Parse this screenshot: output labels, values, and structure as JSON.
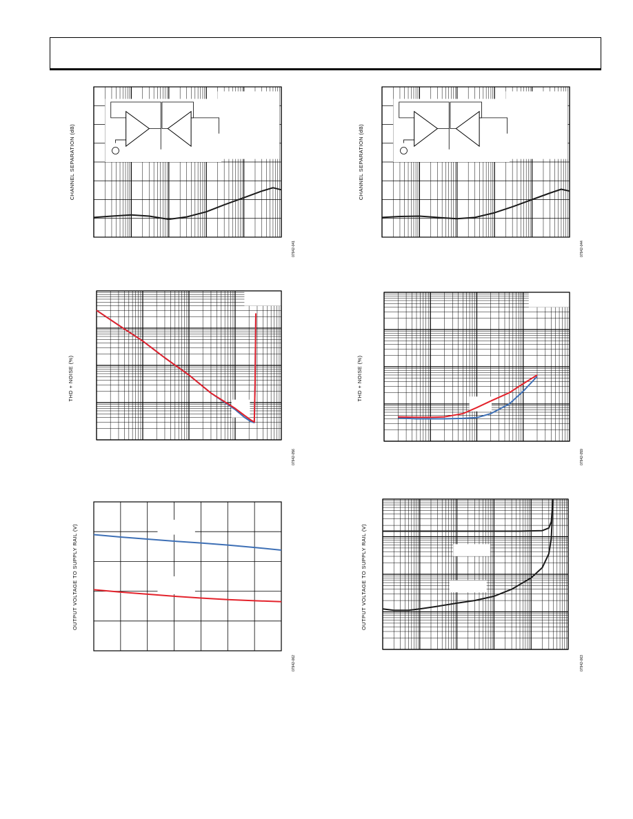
{
  "page": {
    "ylabels": {
      "ch_sep": "CHANNEL SEPARATION (dB)",
      "thd": "THD + NOISE (%)",
      "vout": "OUTPUT VOLTAGE TO SUPPLY RAIL (V)"
    },
    "fignums": [
      "07942-041",
      "07942-044",
      "07942-056",
      "07942-059",
      "07942-062",
      "07942-063"
    ]
  },
  "colors": {
    "blue": "#3d6fb5",
    "red": "#e3222b",
    "black": "#1a1a1a",
    "grid": "#000000"
  },
  "chart_data": [
    {
      "type": "line",
      "ylabel": "CHANNEL SEPARATION (dB)",
      "xscale": "log",
      "xlim": [
        0.1,
        10000
      ],
      "ylim": [
        0,
        8
      ],
      "grid": true,
      "series": [
        {
          "color": "black",
          "x": [
            0.1,
            0.3,
            1,
            3,
            10,
            30,
            100,
            300,
            1000,
            3000,
            6000,
            10000
          ],
          "y": [
            1.05,
            1.12,
            1.18,
            1.12,
            0.95,
            1.08,
            1.35,
            1.72,
            2.1,
            2.45,
            2.63,
            2.52
          ]
        }
      ]
    },
    {
      "type": "line",
      "ylabel": "CHANNEL SEPARATION (dB)",
      "xscale": "log",
      "xlim": [
        0.1,
        10000
      ],
      "ylim": [
        0,
        8
      ],
      "grid": true,
      "series": [
        {
          "color": "black",
          "x": [
            0.1,
            0.3,
            1,
            3,
            10,
            30,
            100,
            300,
            1000,
            3000,
            6000,
            10000
          ],
          "y": [
            1.05,
            1.1,
            1.12,
            1.05,
            0.98,
            1.05,
            1.3,
            1.62,
            2.0,
            2.35,
            2.55,
            2.45
          ]
        }
      ]
    },
    {
      "type": "line",
      "ylabel": "THD + NOISE (%)",
      "xscale": "log",
      "yscale": "log",
      "xlim": [
        0.001,
        10
      ],
      "ylim": [
        0.0001,
        1
      ],
      "grid": true,
      "series": [
        {
          "color": "blue",
          "x": [
            0.001,
            0.003,
            0.01,
            0.03,
            0.1,
            0.3,
            1,
            1.6,
            2.2,
            2.6,
            2.7,
            2.8
          ],
          "y": [
            0.3,
            0.12,
            0.045,
            0.016,
            0.0055,
            0.0018,
            0.00065,
            0.0004,
            0.00031,
            0.00029,
            0.003,
            0.25
          ]
        },
        {
          "color": "red",
          "x": [
            0.001,
            0.003,
            0.01,
            0.03,
            0.1,
            0.3,
            1,
            1.6,
            2.2,
            2.6,
            2.7,
            2.8
          ],
          "y": [
            0.3,
            0.12,
            0.045,
            0.016,
            0.0055,
            0.0018,
            0.0007,
            0.00045,
            0.00034,
            0.0003,
            0.003,
            0.25
          ]
        }
      ]
    },
    {
      "type": "line",
      "ylabel": "THD + NOISE (%)",
      "xscale": "log",
      "yscale": "log",
      "xlim": [
        10,
        100000
      ],
      "ylim": [
        0.0001,
        1
      ],
      "grid": true,
      "series": [
        {
          "color": "blue",
          "x": [
            20,
            50,
            100,
            200,
            500,
            1000,
            2000,
            5000,
            10000,
            20000
          ],
          "y": [
            0.00042,
            0.0004,
            0.0004,
            0.0004,
            0.00041,
            0.00043,
            0.00055,
            0.001,
            0.0022,
            0.0055
          ]
        },
        {
          "color": "red",
          "x": [
            20,
            50,
            100,
            200,
            500,
            1000,
            2000,
            5000,
            10000,
            20000
          ],
          "y": [
            0.00045,
            0.00044,
            0.00044,
            0.00045,
            0.00055,
            0.0008,
            0.0012,
            0.002,
            0.0035,
            0.006
          ]
        }
      ]
    },
    {
      "type": "line",
      "ylabel": "OUTPUT VOLTAGE TO SUPPLY RAIL (V)",
      "xlim": [
        0,
        7
      ],
      "ylim": [
        0,
        5
      ],
      "grid": true,
      "series": [
        {
          "color": "blue",
          "x": [
            0,
            1,
            2,
            3,
            4,
            5,
            6,
            7
          ],
          "y": [
            3.9,
            3.82,
            3.75,
            3.68,
            3.62,
            3.55,
            3.47,
            3.38
          ]
        },
        {
          "color": "red",
          "x": [
            0,
            1,
            2,
            3,
            4,
            5,
            6,
            7
          ],
          "y": [
            2.05,
            1.97,
            1.9,
            1.83,
            1.77,
            1.72,
            1.68,
            1.65
          ]
        }
      ]
    },
    {
      "type": "line",
      "ylabel": "OUTPUT VOLTAGE TO SUPPLY RAIL (V)",
      "xscale": "log",
      "yscale": "log",
      "xlim": [
        0.001,
        100
      ],
      "ylim": [
        0.001,
        10
      ],
      "grid": true,
      "series": [
        {
          "color": "black",
          "x": [
            0.001,
            0.01,
            0.1,
            1,
            5,
            20,
            30,
            35,
            37,
            38
          ],
          "y": [
            1.4,
            1.4,
            1.4,
            1.4,
            1.4,
            1.45,
            1.7,
            2.5,
            5,
            10
          ]
        },
        {
          "color": "black",
          "x": [
            0.001,
            0.002,
            0.005,
            0.01,
            0.03,
            0.1,
            0.3,
            1,
            3,
            10,
            20,
            30,
            35,
            37,
            38
          ],
          "y": [
            0.012,
            0.011,
            0.011,
            0.012,
            0.014,
            0.017,
            0.02,
            0.026,
            0.04,
            0.08,
            0.15,
            0.35,
            0.9,
            3,
            10
          ]
        }
      ]
    }
  ]
}
